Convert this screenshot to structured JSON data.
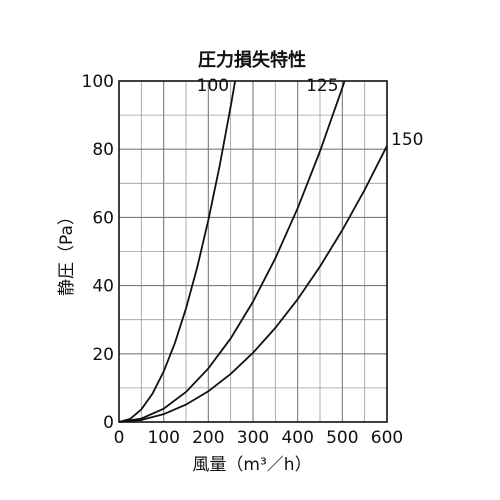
{
  "chart_data": {
    "type": "line",
    "title": "圧力損失特性",
    "xlabel": "風量（m³／h）",
    "ylabel": "静圧（Pa）",
    "xlim": [
      0,
      600
    ],
    "ylim": [
      0,
      100
    ],
    "x_ticks": [
      "0",
      "100",
      "200",
      "300",
      "400",
      "500",
      "600"
    ],
    "y_ticks": [
      "0",
      "20",
      "40",
      "60",
      "80",
      "100"
    ],
    "grid": true,
    "series": [
      {
        "name": "100",
        "x": [
          0,
          25,
          50,
          75,
          100,
          125,
          150,
          175,
          200,
          225,
          250,
          260
        ],
        "y": [
          0,
          0.9,
          3.7,
          8.3,
          14.8,
          23.1,
          33.3,
          45.3,
          59.2,
          74.9,
          92.5,
          100
        ]
      },
      {
        "name": "125",
        "x": [
          0,
          50,
          100,
          150,
          200,
          250,
          300,
          350,
          400,
          450,
          500,
          505
        ],
        "y": [
          0,
          1.0,
          3.9,
          8.8,
          15.7,
          24.5,
          35.3,
          48.0,
          62.7,
          79.4,
          98.0,
          100
        ]
      },
      {
        "name": "150",
        "x": [
          0,
          50,
          100,
          150,
          200,
          250,
          300,
          350,
          400,
          450,
          500,
          550,
          600
        ],
        "y": [
          0,
          0.6,
          2.3,
          5.1,
          9.0,
          14.1,
          20.3,
          27.6,
          36.0,
          45.6,
          56.3,
          68.1,
          81.0
        ]
      }
    ]
  }
}
